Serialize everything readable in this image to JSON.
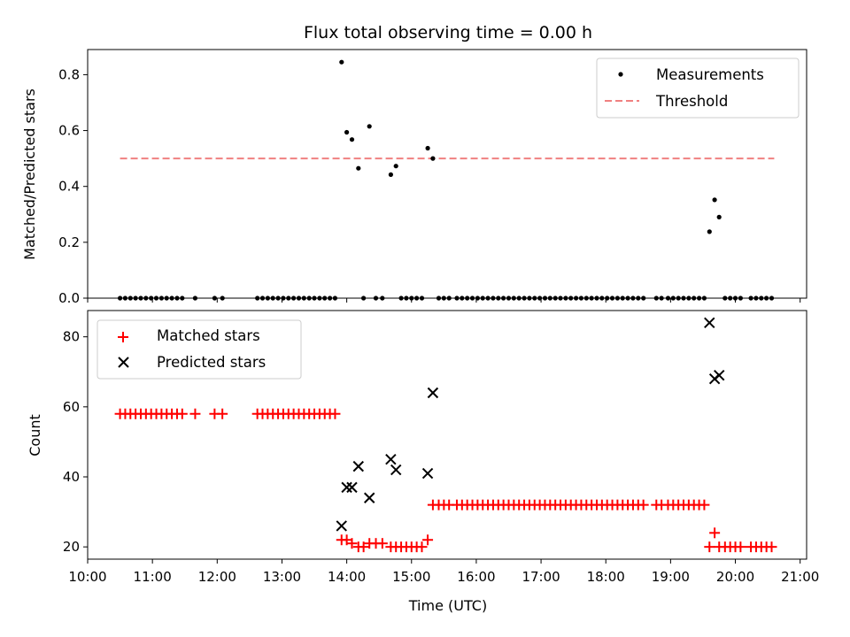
{
  "title": "Flux total observing time = 0.00 h",
  "chart_data": [
    {
      "type": "scatter",
      "ylabel": "Matched/Predicted stars",
      "xlim": [
        10.0,
        21.1
      ],
      "ylim": [
        0,
        0.89
      ],
      "yticks": [
        "0.0",
        "0.2",
        "0.4",
        "0.6",
        "0.8"
      ],
      "yticks_values": [
        0,
        0.2,
        0.4,
        0.6,
        0.8
      ],
      "legend_position": "upper right",
      "threshold": {
        "value": 0.5,
        "x_range": [
          10.5,
          20.6
        ],
        "color": "#f08080",
        "name": "Threshold"
      },
      "series": [
        {
          "name": "Measurements",
          "marker": "dot",
          "color": "#000000",
          "x": [
            10.5,
            10.58,
            10.66,
            10.74,
            10.82,
            10.9,
            10.98,
            11.06,
            11.14,
            11.22,
            11.3,
            11.38,
            11.46,
            11.66,
            11.96,
            12.08,
            12.62,
            12.7,
            12.78,
            12.86,
            12.94,
            13.02,
            13.1,
            13.18,
            13.26,
            13.34,
            13.42,
            13.5,
            13.58,
            13.66,
            13.74,
            13.82,
            13.92,
            14.0,
            14.08,
            14.18,
            14.26,
            14.35,
            14.45,
            14.55,
            14.68,
            14.76,
            14.84,
            14.92,
            15.0,
            15.08,
            15.16,
            15.25,
            15.33,
            15.42,
            15.5,
            15.58,
            15.7,
            15.78,
            15.86,
            15.94,
            16.02,
            16.1,
            16.18,
            16.26,
            16.34,
            16.42,
            16.5,
            16.58,
            16.66,
            16.74,
            16.82,
            16.9,
            16.98,
            17.06,
            17.14,
            17.22,
            17.3,
            17.38,
            17.46,
            17.54,
            17.62,
            17.7,
            17.78,
            17.86,
            17.94,
            18.02,
            18.1,
            18.18,
            18.26,
            18.34,
            18.42,
            18.5,
            18.58,
            18.78,
            18.86,
            18.96,
            19.04,
            19.12,
            19.2,
            19.28,
            19.36,
            19.44,
            19.52,
            19.6,
            19.68,
            19.75,
            19.84,
            19.92,
            20.0,
            20.08,
            20.24,
            20.32,
            20.4,
            20.48,
            20.56
          ],
          "y": [
            0,
            0,
            0,
            0,
            0,
            0,
            0,
            0,
            0,
            0,
            0,
            0,
            0,
            0,
            0,
            0,
            0,
            0,
            0,
            0,
            0,
            0,
            0,
            0,
            0,
            0,
            0,
            0,
            0,
            0,
            0,
            0,
            0.845,
            0.594,
            0.568,
            0.465,
            0,
            0.615,
            0,
            0,
            0.442,
            0.473,
            0,
            0,
            0,
            0,
            0,
            0.537,
            0.5,
            0,
            0,
            0,
            0,
            0,
            0,
            0,
            0,
            0,
            0,
            0,
            0,
            0,
            0,
            0,
            0,
            0,
            0,
            0,
            0,
            0,
            0,
            0,
            0,
            0,
            0,
            0,
            0,
            0,
            0,
            0,
            0,
            0,
            0,
            0,
            0,
            0,
            0,
            0,
            0,
            0,
            0,
            0,
            0,
            0,
            0,
            0,
            0,
            0,
            0,
            0.238,
            0.352,
            0.29,
            0,
            0,
            0,
            0,
            0,
            0,
            0,
            0,
            0
          ]
        }
      ]
    },
    {
      "type": "scatter",
      "xlabel": "Time (UTC)",
      "ylabel": "Count",
      "xlim": [
        10.0,
        21.1
      ],
      "ylim": [
        16.5,
        87.5
      ],
      "xticks": [
        "10:00",
        "11:00",
        "12:00",
        "13:00",
        "14:00",
        "15:00",
        "16:00",
        "17:00",
        "18:00",
        "19:00",
        "20:00",
        "21:00"
      ],
      "xticks_values": [
        10,
        11,
        12,
        13,
        14,
        15,
        16,
        17,
        18,
        19,
        20,
        21
      ],
      "yticks": [
        "20",
        "40",
        "60",
        "80"
      ],
      "yticks_values": [
        20,
        40,
        60,
        80
      ],
      "legend_position": "upper left",
      "series": [
        {
          "name": "Matched stars",
          "marker": "plus",
          "color": "#ff0000",
          "x": [
            10.5,
            10.58,
            10.66,
            10.74,
            10.82,
            10.9,
            10.98,
            11.06,
            11.14,
            11.22,
            11.3,
            11.38,
            11.46,
            11.66,
            11.96,
            12.08,
            12.62,
            12.7,
            12.78,
            12.86,
            12.94,
            13.02,
            13.1,
            13.18,
            13.26,
            13.34,
            13.42,
            13.5,
            13.58,
            13.66,
            13.74,
            13.82,
            13.92,
            14.0,
            14.08,
            14.18,
            14.26,
            14.35,
            14.45,
            14.55,
            14.68,
            14.76,
            14.84,
            14.92,
            15.0,
            15.08,
            15.16,
            15.25,
            15.33,
            15.42,
            15.5,
            15.58,
            15.7,
            15.78,
            15.86,
            15.94,
            16.02,
            16.1,
            16.18,
            16.26,
            16.34,
            16.42,
            16.5,
            16.58,
            16.66,
            16.74,
            16.82,
            16.9,
            16.98,
            17.06,
            17.14,
            17.22,
            17.3,
            17.38,
            17.46,
            17.54,
            17.62,
            17.7,
            17.78,
            17.86,
            17.94,
            18.02,
            18.1,
            18.18,
            18.26,
            18.34,
            18.42,
            18.5,
            18.58,
            18.78,
            18.86,
            18.96,
            19.04,
            19.12,
            19.2,
            19.28,
            19.36,
            19.44,
            19.52,
            19.6,
            19.68,
            19.75,
            19.84,
            19.92,
            20.0,
            20.08,
            20.24,
            20.32,
            20.4,
            20.48,
            20.56
          ],
          "y": [
            58,
            58,
            58,
            58,
            58,
            58,
            58,
            58,
            58,
            58,
            58,
            58,
            58,
            58,
            58,
            58,
            58,
            58,
            58,
            58,
            58,
            58,
            58,
            58,
            58,
            58,
            58,
            58,
            58,
            58,
            58,
            58,
            22,
            22,
            21,
            20,
            20,
            21,
            21,
            21,
            20,
            20,
            20,
            20,
            20,
            20,
            20,
            22,
            32,
            32,
            32,
            32,
            32,
            32,
            32,
            32,
            32,
            32,
            32,
            32,
            32,
            32,
            32,
            32,
            32,
            32,
            32,
            32,
            32,
            32,
            32,
            32,
            32,
            32,
            32,
            32,
            32,
            32,
            32,
            32,
            32,
            32,
            32,
            32,
            32,
            32,
            32,
            32,
            32,
            32,
            32,
            32,
            32,
            32,
            32,
            32,
            32,
            32,
            32,
            20,
            24,
            20,
            20,
            20,
            20,
            20,
            20,
            20,
            20,
            20,
            20
          ]
        },
        {
          "name": "Predicted stars",
          "marker": "x",
          "color": "#000000",
          "x": [
            13.92,
            14.0,
            14.08,
            14.18,
            14.35,
            14.68,
            14.76,
            15.25,
            15.33,
            19.6,
            19.68,
            19.75
          ],
          "y": [
            26,
            37,
            37,
            43,
            34,
            45,
            42,
            41,
            64,
            84,
            68,
            69
          ]
        }
      ]
    }
  ]
}
